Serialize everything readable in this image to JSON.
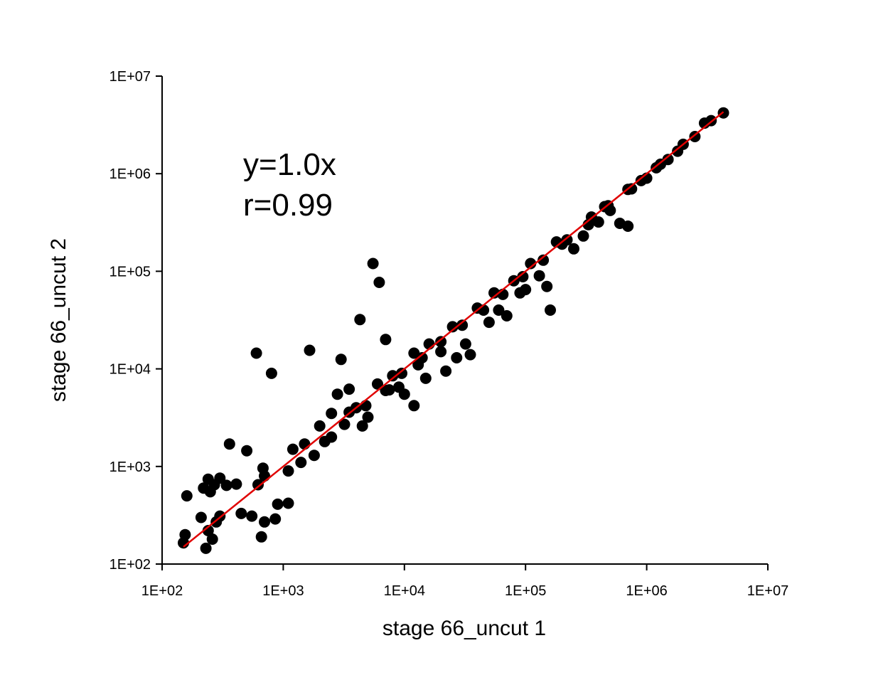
{
  "chart_data": {
    "type": "scatter",
    "title": "",
    "xlabel": "stage 66_uncut 1",
    "ylabel": "stage 66_uncut 2",
    "xscale": "log",
    "yscale": "log",
    "xlim": [
      100,
      10000000
    ],
    "ylim": [
      100,
      10000000
    ],
    "xticks": [
      "1E+02",
      "1E+03",
      "1E+04",
      "1E+05",
      "1E+06",
      "1E+07"
    ],
    "yticks": [
      "1E+02",
      "1E+03",
      "1E+04",
      "1E+05",
      "1E+06",
      "1E+07"
    ],
    "grid": false,
    "legend": "none",
    "annotations": [
      "y=1.0x",
      "r=0.99"
    ],
    "point_color": "#000000",
    "fit_line": {
      "slope": 1.0,
      "x_range": [
        150,
        4300000
      ],
      "color": "#e00000"
    },
    "series": [
      {
        "points": [
          [
            150,
            165
          ],
          [
            155,
            200
          ],
          [
            160,
            500
          ],
          [
            220,
            600
          ],
          [
            240,
            740
          ],
          [
            270,
            650
          ],
          [
            300,
            760
          ],
          [
            250,
            550
          ],
          [
            210,
            300
          ],
          [
            240,
            220
          ],
          [
            260,
            180
          ],
          [
            230,
            145
          ],
          [
            300,
            310
          ],
          [
            280,
            270
          ],
          [
            360,
            1700
          ],
          [
            500,
            1450
          ],
          [
            340,
            640
          ],
          [
            410,
            660
          ],
          [
            600,
            14500
          ],
          [
            800,
            9000
          ],
          [
            1650,
            15500
          ],
          [
            1100,
            420
          ],
          [
            900,
            410
          ],
          [
            550,
            310
          ],
          [
            660,
            190
          ],
          [
            700,
            270
          ],
          [
            860,
            290
          ],
          [
            450,
            330
          ],
          [
            620,
            650
          ],
          [
            700,
            800
          ],
          [
            680,
            960
          ],
          [
            4300,
            32000
          ],
          [
            5500,
            120000
          ],
          [
            6200,
            77000
          ],
          [
            3000,
            12500
          ],
          [
            2800,
            5500
          ],
          [
            3500,
            6200
          ],
          [
            4500,
            2600
          ],
          [
            5000,
            3200
          ],
          [
            7000,
            20000
          ],
          [
            7500,
            6100
          ],
          [
            9000,
            6500
          ],
          [
            10000,
            5500
          ],
          [
            13000,
            11000
          ],
          [
            12000,
            4200
          ],
          [
            15000,
            8000
          ],
          [
            20000,
            15000
          ],
          [
            22000,
            9500
          ],
          [
            27000,
            13000
          ],
          [
            32000,
            18000
          ],
          [
            35000,
            14000
          ],
          [
            50000,
            30000
          ],
          [
            60000,
            40000
          ],
          [
            70000,
            35000
          ],
          [
            80000,
            80000
          ],
          [
            90000,
            60000
          ],
          [
            100000,
            65000
          ],
          [
            130000,
            90000
          ],
          [
            150000,
            70000
          ],
          [
            160000,
            40000
          ],
          [
            200000,
            190000
          ],
          [
            250000,
            170000
          ],
          [
            300000,
            230000
          ],
          [
            400000,
            320000
          ],
          [
            500000,
            420000
          ],
          [
            600000,
            310000
          ],
          [
            700000,
            290000
          ],
          [
            750000,
            700000
          ],
          [
            900000,
            850000
          ],
          [
            1000000,
            900000
          ],
          [
            1200000,
            1150000
          ],
          [
            1500000,
            1400000
          ],
          [
            2000000,
            2000000
          ],
          [
            3000000,
            3300000
          ],
          [
            3400000,
            3500000
          ],
          [
            4300000,
            4200000
          ],
          [
            1200,
            1500
          ],
          [
            1500,
            1700
          ],
          [
            1800,
            1300
          ],
          [
            2000,
            2600
          ],
          [
            2500,
            2000
          ],
          [
            2500,
            3500
          ],
          [
            3500,
            3600
          ],
          [
            4000,
            4000
          ],
          [
            6000,
            7000
          ],
          [
            8000,
            8500
          ],
          [
            12000,
            14500
          ],
          [
            16000,
            18000
          ],
          [
            25000,
            27000
          ],
          [
            40000,
            42000
          ],
          [
            55000,
            60000
          ],
          [
            110000,
            120000
          ],
          [
            180000,
            200000
          ],
          [
            350000,
            360000
          ],
          [
            450000,
            460000
          ],
          [
            1100,
            900
          ],
          [
            1400,
            1100
          ],
          [
            2200,
            1800
          ],
          [
            3200,
            2700
          ],
          [
            4800,
            4200
          ],
          [
            7000,
            6000
          ],
          [
            9500,
            9000
          ],
          [
            14000,
            13000
          ],
          [
            20000,
            19000
          ],
          [
            30000,
            28000
          ],
          [
            45000,
            40000
          ],
          [
            65000,
            58000
          ],
          [
            95000,
            88000
          ],
          [
            140000,
            130000
          ],
          [
            220000,
            210000
          ],
          [
            330000,
            300000
          ],
          [
            480000,
            470000
          ],
          [
            700000,
            690000
          ],
          [
            1300000,
            1250000
          ],
          [
            1800000,
            1700000
          ],
          [
            2500000,
            2400000
          ]
        ]
      }
    ]
  }
}
